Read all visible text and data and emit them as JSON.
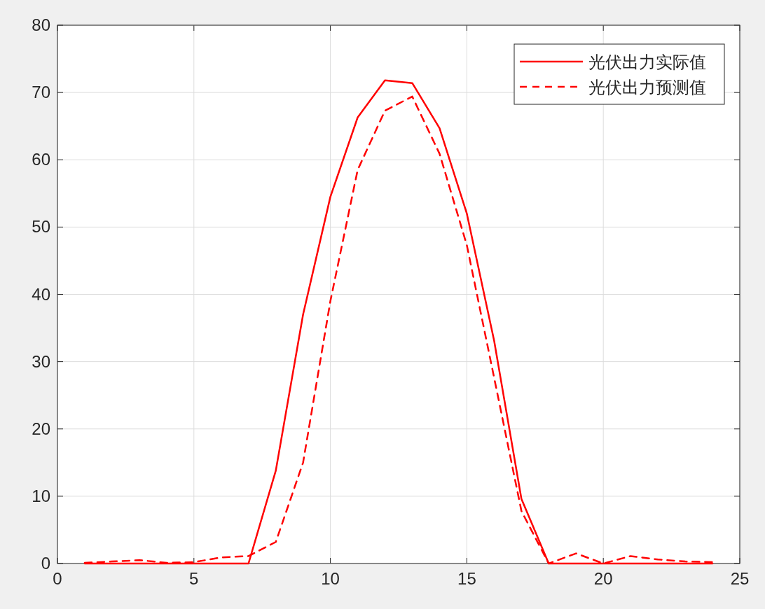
{
  "chart_data": {
    "type": "line",
    "x": [
      1,
      2,
      3,
      4,
      5,
      6,
      7,
      8,
      9,
      10,
      11,
      12,
      13,
      14,
      15,
      16,
      17,
      18,
      19,
      20,
      21,
      22,
      23,
      24
    ],
    "series": [
      {
        "name": "光伏出力实际值",
        "color": "#ff0000",
        "line_style": "solid",
        "values": [
          0,
          0,
          0,
          0,
          0,
          0,
          0,
          13.8,
          37,
          54.5,
          66.3,
          71.8,
          71.4,
          64.7,
          52,
          33.1,
          9.6,
          0,
          0,
          0,
          0,
          0,
          0,
          0
        ]
      },
      {
        "name": "光伏出力预测值",
        "color": "#ff0000",
        "line_style": "dashed",
        "values": [
          0.1,
          0.3,
          0.5,
          0.1,
          0.2,
          0.9,
          1.1,
          3.2,
          15,
          39,
          58.5,
          67.3,
          69.4,
          60.9,
          47.3,
          27.6,
          7.8,
          0,
          1.5,
          0,
          1.1,
          0.6,
          0.3,
          0.2
        ]
      }
    ],
    "xlim": [
      0,
      25
    ],
    "xticks": [
      0,
      5,
      10,
      15,
      20,
      25
    ],
    "ylim": [
      0,
      80
    ],
    "yticks": [
      0,
      10,
      20,
      30,
      40,
      50,
      60,
      70,
      80
    ],
    "grid": true,
    "legend": "top right",
    "marker": "none"
  }
}
